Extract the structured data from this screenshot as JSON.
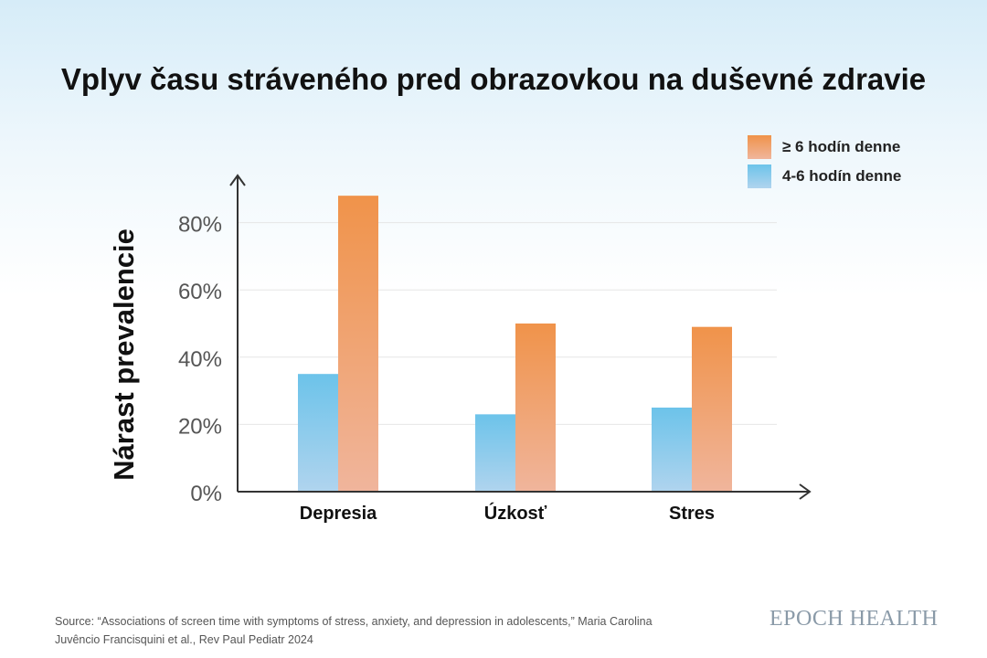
{
  "chart_data": {
    "type": "bar",
    "title": "Vplyv času stráveného pred obrazovkou na duševné zdravie",
    "xlabel": "",
    "ylabel": "Nárast prevalencie",
    "categories": [
      "Depresia",
      "Úzkosť",
      "Stres"
    ],
    "series": [
      {
        "name": "4-6 hodín denne",
        "values": [
          35,
          23,
          25
        ],
        "color": "#6cc3ea"
      },
      {
        "name": "≥ 6 hodín denne",
        "values": [
          88,
          50,
          49
        ],
        "color": "#f0934a"
      }
    ],
    "ylim": [
      0,
      90
    ],
    "yticks": [
      0,
      20,
      40,
      60,
      80
    ],
    "ytick_labels": [
      "0%",
      "20%",
      "40%",
      "60%",
      "80%"
    ],
    "grid": true,
    "legend": "top-right"
  },
  "legend": {
    "orange_label": "≥ 6 hodín denne",
    "blue_label": "4-6 hodín denne"
  },
  "source": "Source: “Associations of screen time with symptoms of stress, anxiety, and depression in adolescents,” Maria Carolina Juvêncio Francisquini et al., Rev Paul Pediatr 2024",
  "brand": "EPOCH HEALTH"
}
